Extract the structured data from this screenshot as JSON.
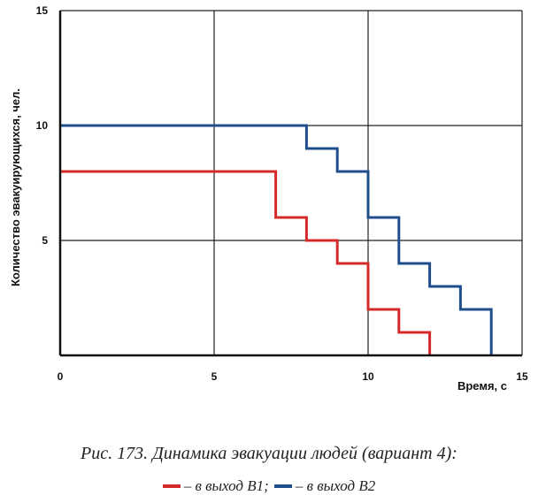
{
  "chart_data": {
    "type": "line",
    "xlabel": "Время, с",
    "ylabel": "Количество эвакуирующихся, чел.",
    "xlim": [
      0,
      15
    ],
    "ylim": [
      0,
      15
    ],
    "xticks": [
      "0",
      "5",
      "10",
      "15"
    ],
    "yticks": [
      "0",
      "5",
      "10",
      "15"
    ],
    "grid": true,
    "step": true,
    "series": [
      {
        "name": "– в выход В1",
        "color": "#d42a2a",
        "x": [
          0,
          7,
          7,
          8,
          8,
          9,
          9,
          10,
          10,
          11,
          11,
          12,
          12
        ],
        "y": [
          8,
          8,
          6,
          6,
          5,
          5,
          4,
          4,
          2,
          2,
          1,
          1,
          0
        ]
      },
      {
        "name": "– в выход В2",
        "color": "#1f4e8c",
        "x": [
          0,
          8,
          8,
          8.5,
          8.5,
          9,
          9,
          10,
          10,
          11,
          11,
          12,
          12,
          13,
          13,
          14,
          14
        ],
        "y": [
          10,
          10,
          9,
          9,
          9,
          9,
          8,
          8,
          6,
          6,
          4,
          4,
          3,
          3,
          2,
          2,
          0
        ]
      }
    ]
  },
  "caption": {
    "title": "Рис. 173. Динамика эвакуации людей (вариант 4):",
    "legend_sep": ";",
    "legend_b1": "– в выход В1",
    "legend_b2": "– в выход В2"
  }
}
